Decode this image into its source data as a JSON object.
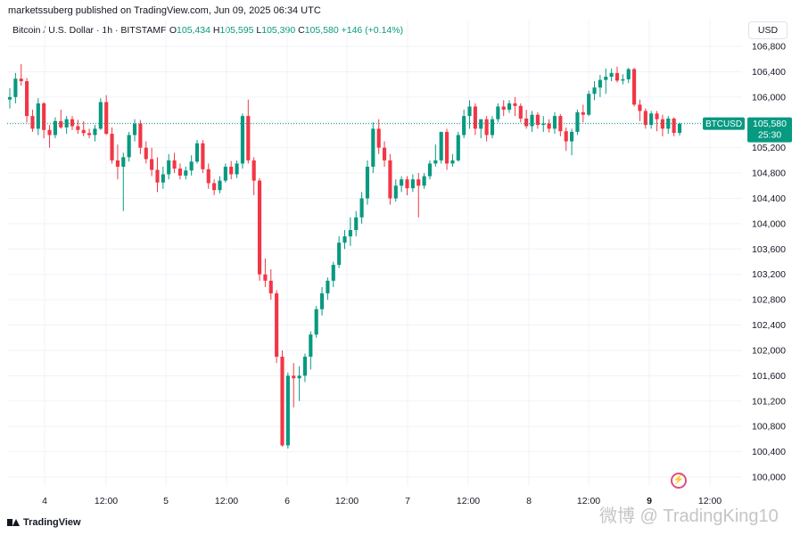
{
  "publisher_line": "marketssuberg published on TradingView.com, Jun 09, 2025 06:34 UTC",
  "legend": {
    "symbol": "Bitcoin / U.S. Dollar · 1h · BITSTAMP",
    "o_label": "O",
    "o": "105,434",
    "h_label": "H",
    "h": "105,595",
    "l_label": "L",
    "l": "105,390",
    "c_label": "C",
    "c": "105,580",
    "change": "+146 (+0.14%)"
  },
  "currency": "USD",
  "price_tag": {
    "symbol": "BTCUSD",
    "price": "105,580",
    "countdown": "25:30"
  },
  "brand": "TradingView",
  "watermark": "微博 @ TradingKing10",
  "colors": {
    "up": "#089981",
    "down": "#f23645",
    "grid": "#f0f3fa",
    "text": "#131722"
  },
  "chart_data": {
    "type": "candlestick",
    "ylim": [
      99800,
      107000
    ],
    "y_ticks": [
      "106,800",
      "106,400",
      "106,000",
      "105,600",
      "105,200",
      "104,800",
      "104,400",
      "104,000",
      "103,600",
      "103,200",
      "102,800",
      "102,400",
      "102,000",
      "101,600",
      "101,200",
      "100,800",
      "100,400",
      "100,000"
    ],
    "x_ticks": [
      "4",
      "12:00",
      "5",
      "12:00",
      "6",
      "12:00",
      "7",
      "12:00",
      "8",
      "12:00",
      "9",
      "12:00"
    ],
    "x_ticks_bold": [
      "9"
    ],
    "last_price": 105580,
    "candles": [
      [
        105960,
        106140,
        105820,
        106000
      ],
      [
        106000,
        106380,
        105900,
        106290
      ],
      [
        106290,
        106520,
        106180,
        106250
      ],
      [
        106250,
        106300,
        105600,
        105700
      ],
      [
        105700,
        105800,
        105450,
        105500
      ],
      [
        105500,
        105980,
        105400,
        105900
      ],
      [
        105900,
        105920,
        105350,
        105480
      ],
      [
        105480,
        105560,
        105200,
        105400
      ],
      [
        105400,
        105680,
        105350,
        105620
      ],
      [
        105620,
        105800,
        105500,
        105520
      ],
      [
        105520,
        105700,
        105420,
        105650
      ],
      [
        105650,
        105700,
        105480,
        105540
      ],
      [
        105540,
        105640,
        105420,
        105480
      ],
      [
        105480,
        105620,
        105380,
        105430
      ],
      [
        105430,
        105500,
        105350,
        105400
      ],
      [
        105400,
        105560,
        105300,
        105500
      ],
      [
        105500,
        105980,
        105480,
        105920
      ],
      [
        105920,
        106030,
        105400,
        105420
      ],
      [
        105420,
        105520,
        104950,
        105000
      ],
      [
        105000,
        105250,
        104700,
        104900
      ],
      [
        104900,
        105120,
        104200,
        105050
      ],
      [
        105050,
        105450,
        104980,
        105400
      ],
      [
        105400,
        105650,
        105300,
        105580
      ],
      [
        105580,
        105640,
        105100,
        105200
      ],
      [
        105200,
        105300,
        104950,
        105020
      ],
      [
        105020,
        105200,
        104750,
        104850
      ],
      [
        104850,
        105050,
        104500,
        104650
      ],
      [
        104650,
        104900,
        104550,
        104780
      ],
      [
        104780,
        105100,
        104700,
        105000
      ],
      [
        105000,
        105120,
        104800,
        104870
      ],
      [
        104870,
        104950,
        104700,
        104760
      ],
      [
        104760,
        104900,
        104700,
        104840
      ],
      [
        104840,
        105080,
        104760,
        104980
      ],
      [
        104980,
        105320,
        104950,
        105270
      ],
      [
        105270,
        105320,
        104800,
        104860
      ],
      [
        104860,
        104950,
        104550,
        104640
      ],
      [
        104640,
        104700,
        104450,
        104530
      ],
      [
        104530,
        104750,
        104480,
        104680
      ],
      [
        104680,
        104950,
        104650,
        104900
      ],
      [
        104900,
        104990,
        104700,
        104780
      ],
      [
        104780,
        105000,
        104720,
        104950
      ],
      [
        104950,
        105740,
        104870,
        105700
      ],
      [
        105700,
        105960,
        104950,
        105000
      ],
      [
        105000,
        105050,
        104450,
        104680
      ],
      [
        104680,
        104720,
        103100,
        103200
      ],
      [
        103200,
        103450,
        103000,
        103100
      ],
      [
        103100,
        103280,
        102800,
        102900
      ],
      [
        102900,
        102950,
        101800,
        101900
      ],
      [
        101900,
        102000,
        100480,
        100500
      ],
      [
        100500,
        101650,
        100450,
        101600
      ],
      [
        101600,
        101800,
        101100,
        101560
      ],
      [
        101560,
        101750,
        101200,
        101600
      ],
      [
        101600,
        101950,
        101500,
        101900
      ],
      [
        101900,
        102300,
        101700,
        102250
      ],
      [
        102250,
        102700,
        102200,
        102650
      ],
      [
        102650,
        103000,
        102550,
        102900
      ],
      [
        102900,
        103150,
        102800,
        103100
      ],
      [
        103100,
        103400,
        103000,
        103350
      ],
      [
        103350,
        103800,
        103300,
        103700
      ],
      [
        103700,
        103900,
        103600,
        103800
      ],
      [
        103800,
        104100,
        103650,
        103900
      ],
      [
        103900,
        104200,
        103800,
        104100
      ],
      [
        104100,
        104500,
        104000,
        104400
      ],
      [
        104400,
        105000,
        104300,
        104900
      ],
      [
        104900,
        105600,
        104800,
        105500
      ],
      [
        105500,
        105650,
        105100,
        105200
      ],
      [
        105200,
        105300,
        104900,
        105000
      ],
      [
        105000,
        105100,
        104300,
        104400
      ],
      [
        104400,
        104700,
        104350,
        104600
      ],
      [
        104600,
        104750,
        104500,
        104700
      ],
      [
        104700,
        104750,
        104450,
        104560
      ],
      [
        104560,
        104780,
        104500,
        104700
      ],
      [
        104700,
        104800,
        104100,
        104600
      ],
      [
        104600,
        104800,
        104550,
        104750
      ],
      [
        104750,
        105000,
        104700,
        104950
      ],
      [
        104950,
        105250,
        104900,
        105000
      ],
      [
        105000,
        105450,
        104950,
        105450
      ],
      [
        105450,
        105500,
        104850,
        104950
      ],
      [
        104950,
        105100,
        104900,
        105000
      ],
      [
        105000,
        105450,
        104980,
        105400
      ],
      [
        105400,
        105800,
        105350,
        105700
      ],
      [
        105700,
        105950,
        105500,
        105850
      ],
      [
        105850,
        105900,
        105400,
        105500
      ],
      [
        105500,
        105600,
        105350,
        105650
      ],
      [
        105650,
        105700,
        105300,
        105400
      ],
      [
        105400,
        105700,
        105350,
        105650
      ],
      [
        105650,
        105900,
        105600,
        105850
      ],
      [
        105850,
        105950,
        105700,
        105800
      ],
      [
        105800,
        105950,
        105750,
        105900
      ],
      [
        105900,
        106000,
        105700,
        105860
      ],
      [
        105860,
        105900,
        105600,
        105660
      ],
      [
        105660,
        105800,
        105500,
        105540
      ],
      [
        105540,
        105780,
        105450,
        105720
      ],
      [
        105720,
        105760,
        105500,
        105560
      ],
      [
        105560,
        105700,
        105450,
        105580
      ],
      [
        105580,
        105650,
        105440,
        105500
      ],
      [
        105500,
        105760,
        105420,
        105700
      ],
      [
        105700,
        105730,
        105380,
        105460
      ],
      [
        105460,
        105520,
        105150,
        105300
      ],
      [
        105300,
        105500,
        105080,
        105450
      ],
      [
        105450,
        105800,
        105400,
        105760
      ],
      [
        105760,
        105880,
        105600,
        105720
      ],
      [
        105720,
        106100,
        105700,
        106050
      ],
      [
        106050,
        106250,
        105950,
        106150
      ],
      [
        106150,
        106350,
        106000,
        106270
      ],
      [
        106270,
        106450,
        106050,
        106320
      ],
      [
        106320,
        106450,
        106250,
        106380
      ],
      [
        106380,
        106480,
        106230,
        106260
      ],
      [
        106260,
        106360,
        106200,
        106280
      ],
      [
        106280,
        106460,
        106220,
        106440
      ],
      [
        106440,
        106460,
        105850,
        105880
      ],
      [
        105880,
        105960,
        105620,
        105780
      ],
      [
        105780,
        105820,
        105500,
        105560
      ],
      [
        105560,
        105780,
        105500,
        105740
      ],
      [
        105740,
        105780,
        105460,
        105650
      ],
      [
        105650,
        105720,
        105380,
        105500
      ],
      [
        105500,
        105700,
        105420,
        105660
      ],
      [
        105660,
        105680,
        105380,
        105434
      ],
      [
        105434,
        105595,
        105390,
        105580
      ]
    ]
  }
}
